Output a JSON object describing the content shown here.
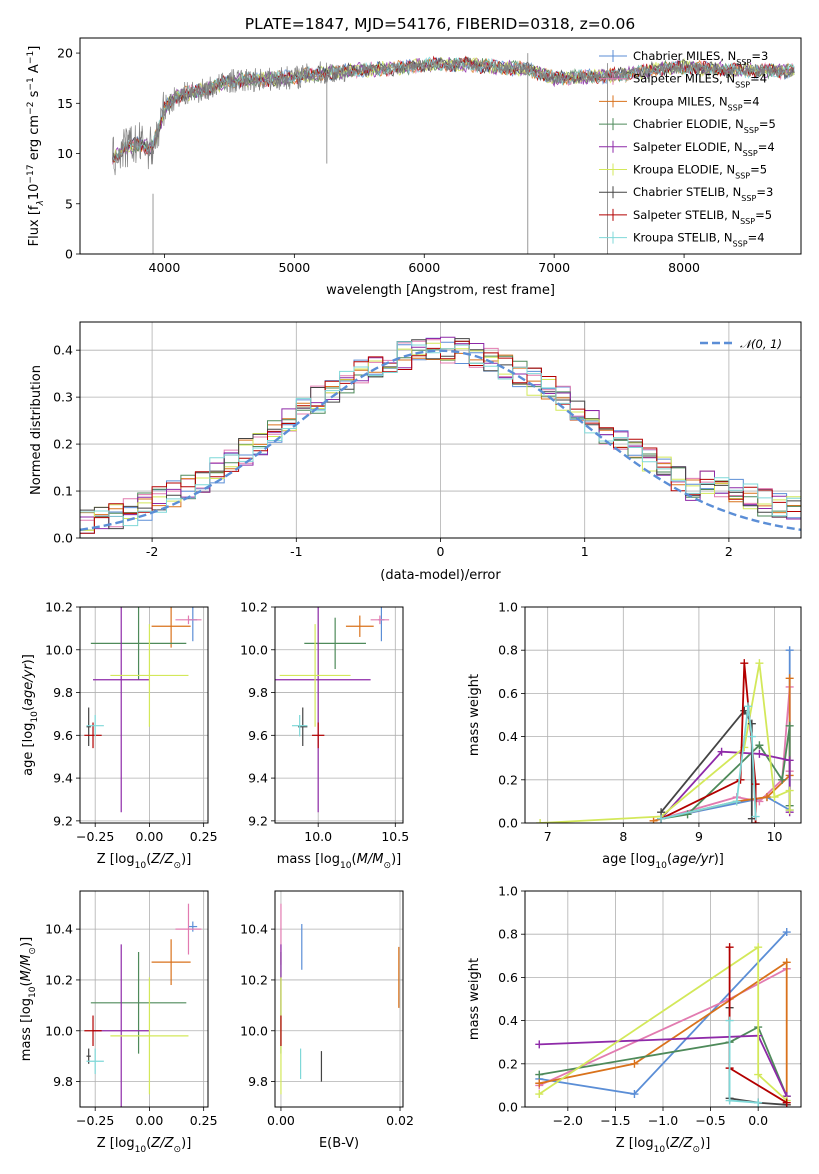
{
  "figure_title": "PLATE=1847, MJD=54176, FIBERID=0318, z=0.06",
  "palette": {
    "chabrier_miles": "#5b8ed6",
    "salpeter_miles": "#e27bb0",
    "kroupa_miles": "#d9721c",
    "chabrier_elodie": "#4e8a5a",
    "salpeter_elodie": "#8e2aa8",
    "kroupa_elodie": "#d3e85a",
    "chabrier_stelib": "#444444",
    "salpeter_stelib": "#b30000",
    "kroupa_stelib": "#7fd8d8",
    "data": "#808080",
    "normal": "#5b8ed6"
  },
  "chart_data": [
    {
      "id": "spectrum",
      "type": "line",
      "xlabel": "wavelength [Angstrom, rest frame]",
      "ylabel": "Flux [f_λ10^{-17} erg cm^{-2} s^{-1} A^{-1}]",
      "ylabel_parts": {
        "main": "Flux [f",
        "sub": "λ",
        "mid": "10",
        "sup1": "−17",
        "mid2": " erg cm",
        "sup2": "−2",
        "mid3": " s",
        "sup3": "−1",
        "mid4": " A",
        "sup4": "−1",
        "end": "]"
      },
      "xlim": [
        3350,
        8900
      ],
      "ylim": [
        0,
        21.5
      ],
      "xticks": [
        4000,
        5000,
        6000,
        7000,
        8000
      ],
      "yticks": [
        0,
        5,
        10,
        15,
        20
      ],
      "continuum": [
        [
          3600,
          9.5
        ],
        [
          3700,
          10.5
        ],
        [
          3800,
          11
        ],
        [
          3900,
          10.5
        ],
        [
          3950,
          12
        ],
        [
          4000,
          14.5
        ],
        [
          4100,
          15.8
        ],
        [
          4300,
          16.3
        ],
        [
          4500,
          17.2
        ],
        [
          4800,
          17.4
        ],
        [
          5000,
          17.6
        ],
        [
          5200,
          18
        ],
        [
          5500,
          18.3
        ],
        [
          5800,
          18.5
        ],
        [
          6000,
          18.8
        ],
        [
          6300,
          18.9
        ],
        [
          6562,
          18.6
        ],
        [
          6800,
          18.4
        ],
        [
          7000,
          17.5
        ],
        [
          7200,
          17.6
        ],
        [
          7500,
          17.8
        ],
        [
          7800,
          18.4
        ],
        [
          8000,
          18.6
        ],
        [
          8400,
          18.3
        ],
        [
          8800,
          18.2
        ]
      ],
      "legend": [
        {
          "key": "chabrier_miles",
          "name": "Chabrier MILES",
          "nssp": "3"
        },
        {
          "key": "salpeter_miles",
          "name": "Salpeter MILES",
          "nssp": "4"
        },
        {
          "key": "kroupa_miles",
          "name": "Kroupa MILES",
          "nssp": "4"
        },
        {
          "key": "chabrier_elodie",
          "name": "Chabrier ELODIE",
          "nssp": "5"
        },
        {
          "key": "salpeter_elodie",
          "name": "Salpeter ELODIE",
          "nssp": "4"
        },
        {
          "key": "kroupa_elodie",
          "name": "Kroupa ELODIE",
          "nssp": "5"
        },
        {
          "key": "chabrier_stelib",
          "name": "Chabrier STELIB",
          "nssp": "3"
        },
        {
          "key": "salpeter_stelib",
          "name": "Salpeter STELIB",
          "nssp": "5"
        },
        {
          "key": "kroupa_stelib",
          "name": "Kroupa STELIB",
          "nssp": "4"
        }
      ],
      "nssp_label": {
        "prefix": "N",
        "sub": "SSP"
      }
    },
    {
      "id": "residuals",
      "type": "histogram",
      "xlabel": "(data-model)/error",
      "ylabel": "Normed distribution",
      "xlim": [
        -2.5,
        2.5
      ],
      "ylim": [
        0,
        0.46
      ],
      "xticks": [
        -2,
        -1,
        0,
        1,
        2
      ],
      "yticks": [
        0.0,
        0.1,
        0.2,
        0.3,
        0.4
      ],
      "ytick_labels": [
        "0.0",
        "0.1",
        "0.2",
        "0.3",
        "0.4"
      ],
      "bin_width": 0.1,
      "normal_label": "𝒩(0, 1)",
      "normal": {
        "mean": 0,
        "sigma": 1
      }
    },
    {
      "id": "age_vs_z",
      "type": "errorbar",
      "xlabel": "Z [log10(Z/Z⊙)]",
      "ylabel": "age  [log10(age/yr)]",
      "xlim": [
        -0.32,
        0.27
      ],
      "ylim": [
        9.19,
        10.2
      ],
      "xticks": [
        -0.25,
        0.0,
        0.25
      ],
      "xtick_labels": [
        "−0.25",
        "0.00",
        "0.25"
      ],
      "yticks": [
        9.2,
        9.4,
        9.6,
        9.8,
        10.0,
        10.2
      ],
      "ytick_labels": [
        "9.2",
        "9.4",
        "9.6",
        "9.8",
        "10.0",
        "10.2"
      ],
      "points": [
        {
          "key": "chabrier_miles",
          "x": 0.2,
          "xerr": 0.02,
          "y": 10.14,
          "yerr": 0.1
        },
        {
          "key": "salpeter_miles",
          "x": 0.18,
          "xerr": 0.06,
          "y": 10.14,
          "yerr": 0.02
        },
        {
          "key": "kroupa_miles",
          "x": 0.1,
          "xerr": 0.09,
          "y": 10.11,
          "yerr": 0.1
        },
        {
          "key": "chabrier_elodie",
          "x": -0.05,
          "xerr": 0.22,
          "y": 10.03,
          "yerr": 0.17
        },
        {
          "key": "salpeter_elodie",
          "x": -0.13,
          "xerr": 0.13,
          "y": 9.86,
          "yerr": 0.62
        },
        {
          "key": "kroupa_elodie",
          "x": 0.0,
          "xerr": 0.18,
          "y": 9.88,
          "yerr": 0.24
        },
        {
          "key": "chabrier_stelib",
          "x": -0.28,
          "xerr": 0.01,
          "y": 9.64,
          "yerr": 0.09
        },
        {
          "key": "salpeter_stelib",
          "x": -0.26,
          "xerr": 0.04,
          "y": 9.6,
          "yerr": 0.06
        },
        {
          "key": "kroupa_stelib",
          "x": -0.25,
          "xerr": 0.04,
          "y": 9.645,
          "yerr": 0.05
        }
      ]
    },
    {
      "id": "age_vs_mass",
      "type": "errorbar",
      "xlabel": "mass [log10(M/M⊙)]",
      "xlim": [
        9.72,
        10.55
      ],
      "ylim": [
        9.19,
        10.2
      ],
      "xticks": [
        10.0,
        10.5
      ],
      "xtick_labels": [
        "10.0",
        "10.5"
      ],
      "yticks": [
        9.2,
        9.4,
        9.6,
        9.8,
        10.0,
        10.2
      ],
      "ytick_labels": [
        "9.2",
        "9.4",
        "9.6",
        "9.8",
        "10.0",
        "10.2"
      ],
      "points": [
        {
          "key": "chabrier_miles",
          "x": 10.41,
          "xerr": 0.02,
          "y": 10.14,
          "yerr": 0.1
        },
        {
          "key": "salpeter_miles",
          "x": 10.4,
          "xerr": 0.06,
          "y": 10.14,
          "yerr": 0.02
        },
        {
          "key": "kroupa_miles",
          "x": 10.27,
          "xerr": 0.09,
          "y": 10.11,
          "yerr": 0.05
        },
        {
          "key": "chabrier_elodie",
          "x": 10.11,
          "xerr": 0.2,
          "y": 10.03,
          "yerr": 0.12
        },
        {
          "key": "salpeter_elodie",
          "x": 10.0,
          "xerr": 0.34,
          "y": 9.86,
          "yerr": 0.62
        },
        {
          "key": "kroupa_elodie",
          "x": 9.98,
          "xerr": 0.23,
          "y": 9.88,
          "yerr": 0.24
        },
        {
          "key": "chabrier_stelib",
          "x": 9.9,
          "xerr": 0.03,
          "y": 9.64,
          "yerr": 0.09
        },
        {
          "key": "salpeter_stelib",
          "x": 10.0,
          "xerr": 0.04,
          "y": 9.6,
          "yerr": 0.06
        },
        {
          "key": "kroupa_stelib",
          "x": 9.88,
          "xerr": 0.05,
          "y": 9.645,
          "yerr": 0.05
        }
      ]
    },
    {
      "id": "weight_vs_age",
      "type": "line",
      "xlabel": "age  [log10(age/yr)]",
      "ylabel": "mass weight",
      "xlim": [
        6.7,
        10.35
      ],
      "ylim": [
        0,
        1
      ],
      "xticks": [
        7,
        8,
        9,
        10
      ],
      "xtick_labels": [
        "7",
        "8",
        "9",
        "10"
      ],
      "yticks": [
        0,
        0.2,
        0.4,
        0.6,
        0.8,
        1.0
      ],
      "ytick_labels": [
        "0.0",
        "0.2",
        "0.4",
        "0.6",
        "0.8",
        "1.0"
      ],
      "series": [
        {
          "key": "chabrier_miles",
          "x": [
            8.5,
            9.9,
            10.2,
            10.2
          ],
          "y": [
            0.02,
            0.12,
            0.06,
            0.8
          ]
        },
        {
          "key": "salpeter_miles",
          "x": [
            8.5,
            9.5,
            9.8,
            10.1,
            10.2,
            10.2
          ],
          "y": [
            0.02,
            0.12,
            0.1,
            0.2,
            0.63,
            0.24
          ]
        },
        {
          "key": "kroupa_miles",
          "x": [
            8.4,
            9.5,
            9.9,
            10.2,
            10.2
          ],
          "y": [
            0.01,
            0.1,
            0.12,
            0.22,
            0.67
          ]
        },
        {
          "key": "chabrier_elodie",
          "x": [
            8.5,
            8.85,
            9.8,
            10.1,
            10.2,
            10.2
          ],
          "y": [
            0.02,
            0.04,
            0.36,
            0.2,
            0.45,
            0.08
          ]
        },
        {
          "key": "salpeter_elodie",
          "x": [
            8.5,
            9.3,
            9.8,
            10.2,
            10.2
          ],
          "y": [
            0.02,
            0.33,
            0.32,
            0.29,
            0.05
          ]
        },
        {
          "key": "kroupa_elodie",
          "x": [
            6.9,
            8.5,
            9.6,
            9.8,
            10.0,
            10.2,
            10.2
          ],
          "y": [
            0.0,
            0.03,
            0.35,
            0.74,
            0.12,
            0.15,
            0.06
          ]
        },
        {
          "key": "chabrier_stelib",
          "x": [
            8.5,
            9.6,
            9.7,
            9.7
          ],
          "y": [
            0.05,
            0.52,
            0.46,
            0.02
          ]
        },
        {
          "key": "salpeter_stelib",
          "x": [
            8.5,
            9.55,
            9.6,
            9.75,
            9.75
          ],
          "y": [
            0.02,
            0.2,
            0.74,
            0.18,
            0.0
          ]
        },
        {
          "key": "kroupa_stelib",
          "x": [
            8.5,
            9.5,
            9.65,
            9.7,
            9.75
          ],
          "y": [
            0.02,
            0.1,
            0.54,
            0.4,
            0.03
          ]
        }
      ]
    },
    {
      "id": "mass_vs_z",
      "type": "errorbar",
      "xlabel": "Z [log10(Z/Z⊙)]",
      "ylabel": "mass [log10(M/M⊙)]",
      "xlim": [
        -0.32,
        0.27
      ],
      "ylim": [
        9.7,
        10.55
      ],
      "xticks": [
        -0.25,
        0.0,
        0.25
      ],
      "xtick_labels": [
        "−0.25",
        "0.00",
        "0.25"
      ],
      "yticks": [
        9.8,
        10.0,
        10.2,
        10.4
      ],
      "ytick_labels": [
        "9.8",
        "10.0",
        "10.2",
        "10.4"
      ],
      "points": [
        {
          "key": "chabrier_miles",
          "x": 0.2,
          "xerr": 0.02,
          "y": 10.41,
          "yerr": 0.02
        },
        {
          "key": "salpeter_miles",
          "x": 0.18,
          "xerr": 0.06,
          "y": 10.4,
          "yerr": 0.1
        },
        {
          "key": "kroupa_miles",
          "x": 0.1,
          "xerr": 0.09,
          "y": 10.27,
          "yerr": 0.09
        },
        {
          "key": "chabrier_elodie",
          "x": -0.05,
          "xerr": 0.22,
          "y": 10.11,
          "yerr": 0.2
        },
        {
          "key": "salpeter_elodie",
          "x": -0.13,
          "xerr": 0.13,
          "y": 10.0,
          "yerr": 0.34
        },
        {
          "key": "kroupa_elodie",
          "x": 0.0,
          "xerr": 0.18,
          "y": 9.98,
          "yerr": 0.23
        },
        {
          "key": "chabrier_stelib",
          "x": -0.28,
          "xerr": 0.01,
          "y": 9.9,
          "yerr": 0.03
        },
        {
          "key": "salpeter_stelib",
          "x": -0.26,
          "xerr": 0.04,
          "y": 10.0,
          "yerr": 0.06
        },
        {
          "key": "kroupa_stelib",
          "x": -0.25,
          "xerr": 0.04,
          "y": 9.88,
          "yerr": 0.05
        }
      ]
    },
    {
      "id": "mass_vs_ebv",
      "type": "errorbar",
      "xlabel": "E(B-V)",
      "xlim": [
        -0.001,
        0.0205
      ],
      "ylim": [
        9.7,
        10.55
      ],
      "xticks": [
        0.0,
        0.02
      ],
      "xtick_labels": [
        "0.00",
        "0.02"
      ],
      "yticks": [
        9.8,
        10.0,
        10.2,
        10.4
      ],
      "ytick_labels": [
        "9.8",
        "10.0",
        "10.2",
        "10.4"
      ],
      "points": [
        {
          "key": "chabrier_miles",
          "x": 0.0035,
          "xerr": 0,
          "y": 10.33,
          "yerr": 0.09
        },
        {
          "key": "salpeter_miles",
          "x": 0.0,
          "xerr": 0,
          "y": 10.38,
          "yerr": 0.12
        },
        {
          "key": "kroupa_miles",
          "x": 0.0198,
          "xerr": 0,
          "y": 10.21,
          "yerr": 0.12
        },
        {
          "key": "chabrier_elodie",
          "x": 0.0,
          "xerr": 0,
          "y": 10.11,
          "yerr": 0.2
        },
        {
          "key": "salpeter_elodie",
          "x": 0.0,
          "xerr": 0,
          "y": 10.2,
          "yerr": 0.14
        },
        {
          "key": "kroupa_elodie",
          "x": 0.0,
          "xerr": 0,
          "y": 9.98,
          "yerr": 0.23
        },
        {
          "key": "chabrier_stelib",
          "x": 0.0068,
          "xerr": 0,
          "y": 9.86,
          "yerr": 0.06
        },
        {
          "key": "salpeter_stelib",
          "x": 0.0,
          "xerr": 0,
          "y": 10.0,
          "yerr": 0.06
        },
        {
          "key": "kroupa_stelib",
          "x": 0.0033,
          "xerr": 0,
          "y": 9.87,
          "yerr": 0.06
        }
      ]
    },
    {
      "id": "weight_vs_z",
      "type": "line",
      "xlabel": "Z [log10(Z/Z⊙)]",
      "ylabel": "mass weight",
      "xlim": [
        -2.45,
        0.45
      ],
      "ylim": [
        0,
        1
      ],
      "xticks": [
        -2.0,
        -1.5,
        -1.0,
        -0.5,
        0.0
      ],
      "xtick_labels": [
        "−2.0",
        "−1.5",
        "−1.0",
        "−0.5",
        "0.0"
      ],
      "yticks": [
        0,
        0.2,
        0.4,
        0.6,
        0.8,
        1.0
      ],
      "ytick_labels": [
        "0.0",
        "0.2",
        "0.4",
        "0.6",
        "0.8",
        "1.0"
      ],
      "series": [
        {
          "key": "chabrier_miles",
          "x": [
            -2.3,
            -1.3,
            0.3
          ],
          "y": [
            0.13,
            0.06,
            0.81
          ]
        },
        {
          "key": "salpeter_miles",
          "x": [
            -2.3,
            -0.3,
            0.3
          ],
          "y": [
            0.1,
            0.5,
            0.64
          ]
        },
        {
          "key": "kroupa_miles",
          "x": [
            -2.3,
            -1.3,
            0.3,
            0.3
          ],
          "y": [
            0.11,
            0.2,
            0.67,
            0.01
          ]
        },
        {
          "key": "chabrier_elodie",
          "x": [
            -2.3,
            -0.3,
            0.0,
            0.3
          ],
          "y": [
            0.15,
            0.3,
            0.37,
            0.05
          ]
        },
        {
          "key": "salpeter_elodie",
          "x": [
            -2.3,
            0.0,
            0.3
          ],
          "y": [
            0.29,
            0.33,
            0.05
          ]
        },
        {
          "key": "kroupa_elodie",
          "x": [
            -2.3,
            0.0,
            0.0,
            0.3
          ],
          "y": [
            0.06,
            0.74,
            0.15,
            0.03
          ]
        },
        {
          "key": "chabrier_stelib",
          "x": [
            -0.3,
            -0.3,
            0.0,
            0.3
          ],
          "y": [
            0.46,
            0.04,
            0.02,
            0.01
          ]
        },
        {
          "key": "salpeter_stelib",
          "x": [
            -0.3,
            -0.3,
            0.3
          ],
          "y": [
            0.74,
            0.18,
            0.02
          ]
        },
        {
          "key": "kroupa_stelib",
          "x": [
            -0.3,
            -0.3,
            0.0
          ],
          "y": [
            0.4,
            0.03,
            0.02
          ]
        }
      ]
    }
  ]
}
